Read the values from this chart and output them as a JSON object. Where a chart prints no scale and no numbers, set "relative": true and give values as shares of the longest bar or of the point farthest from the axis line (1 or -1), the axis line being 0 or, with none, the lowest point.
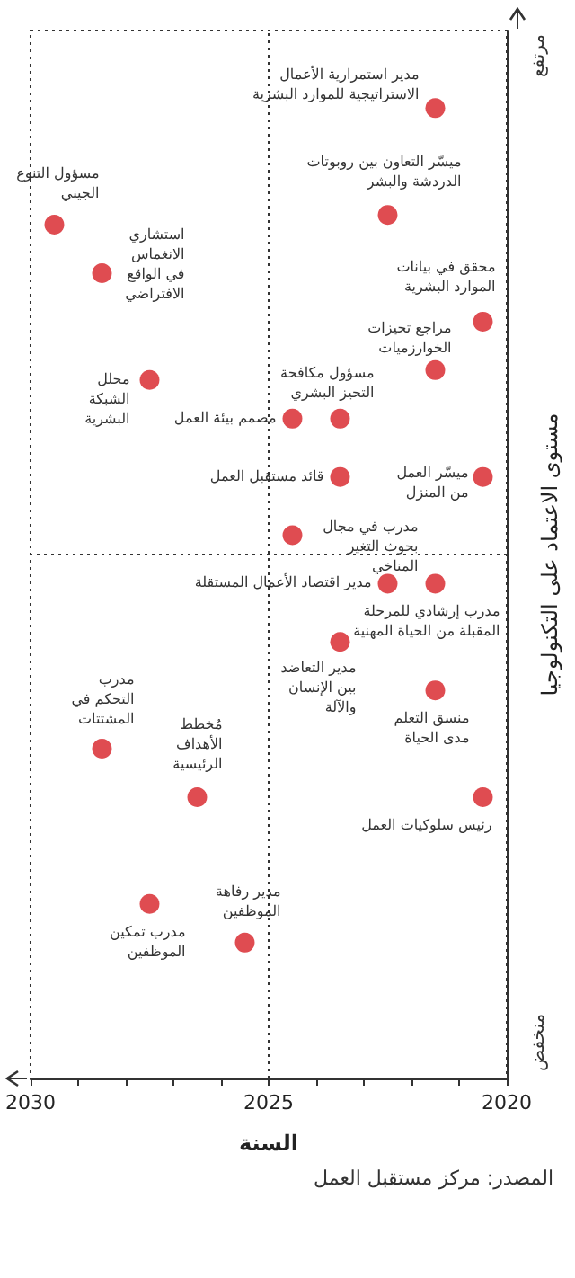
{
  "chart_data": {
    "type": "scatter",
    "relative": true,
    "xlabel": "السنة",
    "ylabel": "مستوى الاعتماد على التكنولوجيا",
    "x": [
      2021.5,
      2022.5,
      2029.5,
      2028.5,
      2020.5,
      2021.5,
      2023.5,
      2024.5,
      2027.5,
      2023.5,
      2020.5,
      2024.5,
      2022.5,
      2021.5,
      2023.5,
      2021.5,
      2028.5,
      2026.5,
      2020.5,
      2025.5,
      2027.5
    ],
    "series": [
      {
        "color": "#d71f26",
        "values": [
          1,
          0.89,
          0.88,
          0.83,
          0.78,
          0.73,
          0.68,
          0.68,
          0.72,
          0.62,
          0.62,
          0.56,
          0.51,
          0.51,
          0.45,
          0.4,
          0.34,
          0.29,
          0.29,
          0.14,
          0.18
        ]
      }
    ],
    "xlim": [
      2030,
      2020
    ],
    "xticks": [
      2020,
      {
        "value": 2021,
        "label": null
      },
      {
        "value": 2022,
        "label": null
      },
      {
        "value": 2023,
        "label": null
      },
      {
        "value": 2024,
        "label": null
      },
      2025,
      {
        "value": 2026,
        "label": null
      },
      {
        "value": 2027,
        "label": null
      },
      {
        "value": 2028,
        "label": null
      },
      {
        "value": 2029,
        "label": null
      },
      2030
    ],
    "ref_lines": [
      {
        "axis": "x",
        "value": 2025,
        "line_style": "dotted"
      },
      {
        "axis": "y",
        "value": 0.54,
        "line_style": "dotted"
      }
    ],
    "marker": "circle",
    "grid": false,
    "annotations": [
      {
        "text": "مدير استمرارية الأعمال الاستراتيجية للموارد البشرية",
        "x": 2021.5,
        "y": 1
      },
      {
        "text": "ميسّر التعاون بين روبوتات الدردشة والبشر",
        "x": 2022.5,
        "y": 0.89
      },
      {
        "text": "مسؤول التنوع الجيني",
        "x": 2029.5,
        "y": 0.88
      },
      {
        "text": "استشاري الانغماس في الواقع الافتراضي",
        "x": 2028.5,
        "y": 0.83
      },
      {
        "text": "محقق في بيانات الموارد البشرية",
        "x": 2020.5,
        "y": 0.78
      },
      {
        "text": "مراجع تحيزات الخوارزميات",
        "x": 2021.5,
        "y": 0.73
      },
      {
        "text": "مسؤول مكافحة التحيز البشري",
        "x": 2023.5,
        "y": 0.68
      },
      {
        "text": "مصمم بيئة العمل",
        "x": 2024.5,
        "y": 0.68
      },
      {
        "text": "محلل الشبكة البشرية",
        "x": 2027.5,
        "y": 0.72
      },
      {
        "text": "قائد مستقبل العمل",
        "x": 2023.5,
        "y": 0.62
      },
      {
        "text": "ميسّر العمل من المنزل",
        "x": 2020.5,
        "y": 0.62
      },
      {
        "text": "مدرب في مجال بحوث التغير المناخي",
        "x": 2024.5,
        "y": 0.56
      },
      {
        "text": "مدير اقتصاد الأعمال المستقلة",
        "x": 2022.5,
        "y": 0.51
      },
      {
        "text": "مدرب إرشادي للمرحلة المقبلة من الحياة المهنية",
        "x": 2021.5,
        "y": 0.51
      },
      {
        "text": "مدير التعاضد بين الإنسان والآلة",
        "x": 2023.5,
        "y": 0.45
      },
      {
        "text": "منسق التعلم مدى الحياة",
        "x": 2021.5,
        "y": 0.4
      },
      {
        "text": "مدرب التحكم في المشتتات",
        "x": 2028.5,
        "y": 0.34
      },
      {
        "text": "مُخطط الأهداف الرئيسية",
        "x": 2026.5,
        "y": 0.29
      },
      {
        "text": "رئيس سلوكيات العمل",
        "x": 2020.5,
        "y": 0.29
      },
      {
        "text": "مدير رفاهة الموظفين",
        "x": 2025.5,
        "y": 0.14
      },
      {
        "text": "مدرب تمكين الموظفين",
        "x": 2027.5,
        "y": 0.18
      },
      "مرتفع",
      "منخفض",
      "المصدر: مركز مستقبل العمل"
    ]
  }
}
